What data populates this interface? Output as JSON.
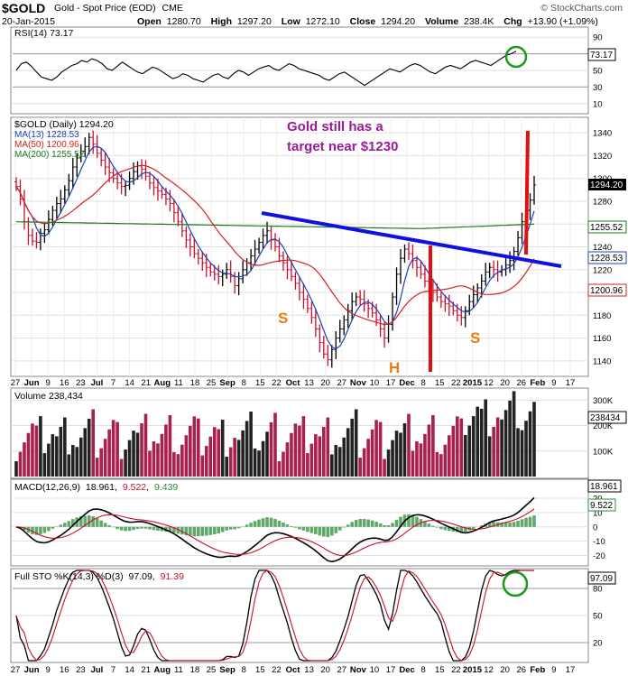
{
  "header": {
    "symbol": "$GOLD",
    "name": "Gold - Spot Price (EOD)",
    "exchange": "CME",
    "date": "20-Jan-2015",
    "open_label": "Open",
    "open": "1280.70",
    "high_label": "High",
    "high": "1297.20",
    "low_label": "Low",
    "low": "1272.10",
    "close_label": "Close",
    "close": "1294.20",
    "volume_label": "Volume",
    "volume": "238.4K",
    "chg_label": "Chg",
    "chg": "+13.90 (+1.09%)",
    "watermark": "© StockCharts.com"
  },
  "x_axis_labels": [
    "27",
    "Jun",
    "9",
    "16",
    "23",
    "Jul",
    "7",
    "14",
    "21",
    "Aug",
    "11",
    "18",
    "25",
    "Sep",
    "8",
    "15",
    "22",
    "Oct",
    "13",
    "20",
    "27",
    "Nov",
    "10",
    "17",
    "Dec",
    "8",
    "15",
    "22",
    "2015",
    "12",
    "20",
    "26",
    "Feb",
    "9",
    "17"
  ],
  "colors": {
    "up_bar": "#000000",
    "down_bar": "#c8102e",
    "ma13": "#1f3fb4",
    "ma50": "#d42020",
    "ma200": "#1e7a1e",
    "neckline": "#1010e0",
    "annotation": "#9a1a9a",
    "sh_label": "#f07a10",
    "target_bar": "#e01010",
    "volume_up": "#222222",
    "volume_down": "#a8204e",
    "macd_hist": "#2e8b3a",
    "circle": "#1a9a1a"
  },
  "chart_data": [
    {
      "panel": "rsi",
      "type": "line",
      "legend": "RSI(14) 73.17",
      "last_value": "73.17",
      "ylim": [
        0,
        100
      ],
      "ticks": [
        "90",
        "70",
        "50",
        "30",
        "10"
      ],
      "values": [
        50,
        58,
        60,
        55,
        48,
        42,
        40,
        38,
        42,
        48,
        52,
        56,
        58,
        62,
        60,
        64,
        62,
        58,
        52,
        50,
        55,
        60,
        56,
        52,
        48,
        46,
        50,
        54,
        52,
        48,
        44,
        40,
        42,
        46,
        44,
        40,
        38,
        36,
        40,
        44,
        46,
        42,
        40,
        46,
        50,
        48,
        44,
        48,
        52,
        54,
        56,
        52,
        50,
        54,
        58,
        56,
        52,
        50,
        48,
        46,
        44,
        40,
        38,
        42,
        46,
        48,
        44,
        40,
        36,
        32,
        36,
        40,
        44,
        48,
        52,
        50,
        48,
        52,
        56,
        58,
        56,
        52,
        48,
        46,
        50,
        54,
        56,
        54,
        52,
        56,
        60,
        62,
        60,
        58,
        56,
        60,
        64,
        68,
        70,
        73.17
      ]
    },
    {
      "panel": "price",
      "type": "ohlc",
      "legend": "$GOLD (Daily) 1294.20",
      "ylim": [
        1128,
        1352
      ],
      "ticks": [
        "1340",
        "1320",
        "1300",
        "1280",
        "1260",
        "1240",
        "1220",
        "1200",
        "1180",
        "1160",
        "1140"
      ],
      "close": [
        1293,
        1282,
        1262,
        1250,
        1245,
        1244,
        1252,
        1255,
        1264,
        1272,
        1278,
        1282,
        1290,
        1298,
        1310,
        1318,
        1324,
        1328,
        1336,
        1330,
        1322,
        1316,
        1310,
        1305,
        1300,
        1296,
        1293,
        1294,
        1300,
        1306,
        1311,
        1308,
        1302,
        1296,
        1292,
        1289,
        1286,
        1282,
        1278,
        1270,
        1262,
        1254,
        1246,
        1240,
        1234,
        1230,
        1226,
        1222,
        1218,
        1216,
        1214,
        1216,
        1220,
        1214,
        1206,
        1212,
        1220,
        1226,
        1232,
        1238,
        1244,
        1250,
        1254,
        1246,
        1240,
        1232,
        1226,
        1220,
        1214,
        1208,
        1200,
        1194,
        1186,
        1178,
        1168,
        1156,
        1146,
        1141,
        1150,
        1160,
        1168,
        1176,
        1184,
        1192,
        1196,
        1194,
        1190,
        1186,
        1182,
        1176,
        1168,
        1160,
        1172,
        1196,
        1216,
        1230,
        1238,
        1234,
        1228,
        1222,
        1216,
        1210,
        1206,
        1200,
        1196,
        1192,
        1190,
        1188,
        1184,
        1180,
        1178,
        1184,
        1192,
        1198,
        1204,
        1210,
        1218,
        1222,
        1220,
        1218,
        1220,
        1224,
        1228,
        1236,
        1248,
        1262,
        1272,
        1281,
        1294.2
      ],
      "ma13_last": "1228.53",
      "ma50_last": "1200.96",
      "ma200_last": "1255.52",
      "ma_legend": [
        "MA(13) 1228.53",
        "MA(50) 1200.96",
        "MA(200) 1255.52"
      ],
      "price_tag": "1294.20",
      "annotation": [
        "Gold still has a",
        "target near $1230"
      ],
      "pattern_labels": [
        "S",
        "H",
        "S"
      ]
    },
    {
      "panel": "volume",
      "type": "bar",
      "legend": "Volume 238,434",
      "ticks": [
        "300K",
        "200K",
        "100K"
      ],
      "last_value": "238434",
      "ylim": [
        0,
        340000
      ]
    },
    {
      "panel": "macd",
      "type": "line",
      "legend_name": "MACD(12,26,9)",
      "legend_values": [
        "18.961",
        "9.522",
        "9.439"
      ],
      "last_value": "18.961",
      "signal_last": "9.522",
      "ylim": [
        -26,
        32
      ],
      "ticks": [
        "20",
        "10",
        "0",
        "-10",
        "-20"
      ]
    },
    {
      "panel": "sto",
      "type": "line",
      "legend_name": "Full STO %K(14,3) %D(3)",
      "legend_values": [
        "97.09",
        "91.39"
      ],
      "last_value": "97.09",
      "ylim": [
        0,
        100
      ],
      "ticks": [
        "80",
        "50",
        "20"
      ]
    }
  ]
}
